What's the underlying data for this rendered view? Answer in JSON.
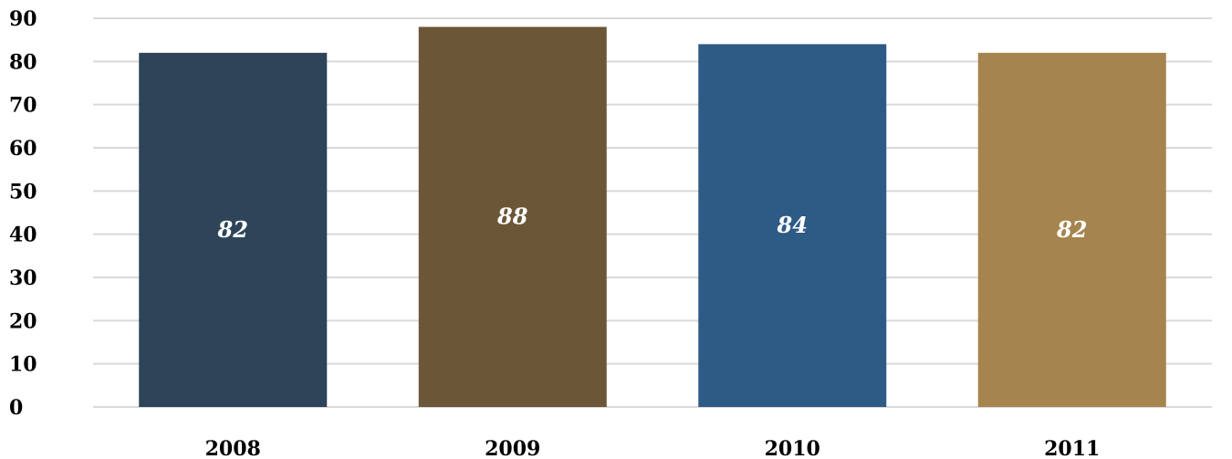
{
  "chart_data": {
    "type": "bar",
    "title": "",
    "xlabel": "",
    "ylabel": "",
    "categories": [
      "2008",
      "2009",
      "2010",
      "2011"
    ],
    "values": [
      82,
      88,
      84,
      82
    ],
    "data_labels": [
      "82",
      "88",
      "84",
      "82"
    ],
    "ylim": [
      0,
      90
    ],
    "yticks": [
      "0",
      "10",
      "20",
      "30",
      "40",
      "50",
      "60",
      "70",
      "80",
      "90"
    ],
    "grid": true,
    "legend": "none",
    "colors": [
      "#2e4459",
      "#6b5637",
      "#2e5a86",
      "#a6844e"
    ]
  }
}
